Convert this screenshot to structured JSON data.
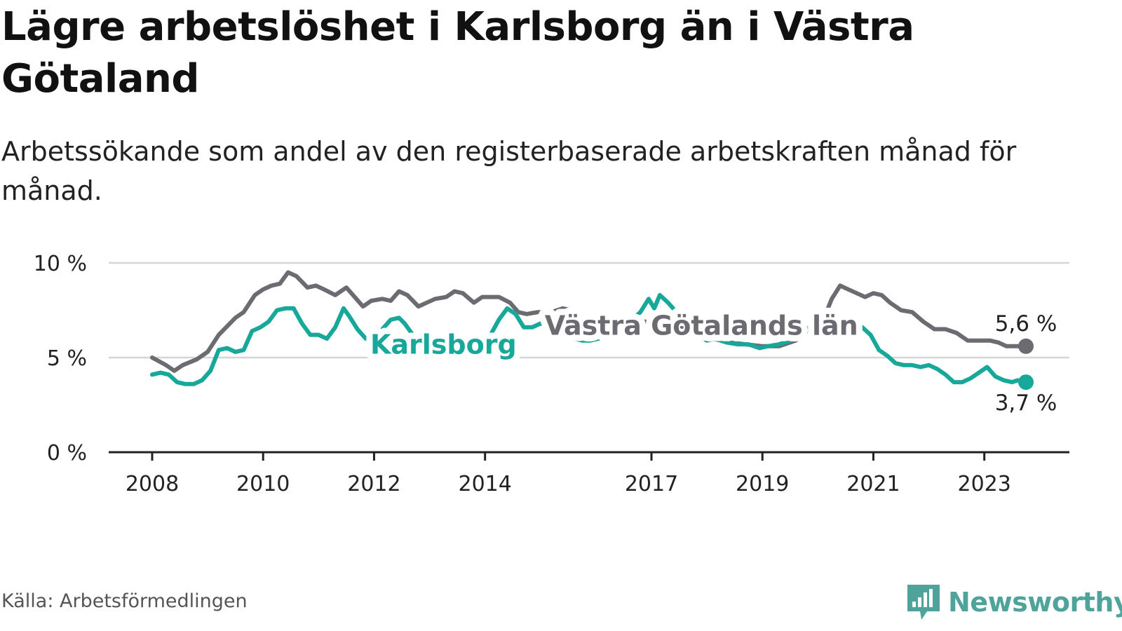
{
  "title": "Lägre arbetslöshet i Karlsborg än i Västra Götaland",
  "subtitle": "Arbetssökande som andel av den registerbaserade arbetskraften månad för månad.",
  "source": "Källa: Arbetsförmedlingen",
  "logo_text": "Newsworthy",
  "colors": {
    "karlsborg": "#17a89a",
    "vastra_gotaland": "#6d6b72",
    "grid": "#d6d6d6",
    "axis": "#222222",
    "logo": "#4fa39b"
  },
  "chart_data": {
    "type": "line",
    "title": "Lägre arbetslöshet i Karlsborg än i Västra Götaland",
    "xlabel": "",
    "ylabel": "",
    "xlim": [
      2008.0,
      2023.75
    ],
    "ylim": [
      0,
      10
    ],
    "yticks": [
      {
        "value": 0,
        "label": "0 %"
      },
      {
        "value": 5,
        "label": "5 %"
      },
      {
        "value": 10,
        "label": "10 %"
      }
    ],
    "xticks": [
      {
        "value": 2008,
        "label": "2008"
      },
      {
        "value": 2010,
        "label": "2010"
      },
      {
        "value": 2012,
        "label": "2012"
      },
      {
        "value": 2014,
        "label": "2014"
      },
      {
        "value": 2017,
        "label": "2017"
      },
      {
        "value": 2019,
        "label": "2019"
      },
      {
        "value": 2021,
        "label": "2021"
      },
      {
        "value": 2023,
        "label": "2023"
      }
    ],
    "grid": true,
    "series": [
      {
        "name": "Västra Götalands län",
        "end_label": "5,6 %",
        "points": [
          [
            2008.0,
            5.0
          ],
          [
            2008.25,
            4.6
          ],
          [
            2008.4,
            4.3
          ],
          [
            2008.55,
            4.6
          ],
          [
            2008.8,
            4.9
          ],
          [
            2009.0,
            5.3
          ],
          [
            2009.2,
            6.2
          ],
          [
            2009.5,
            7.1
          ],
          [
            2009.65,
            7.4
          ],
          [
            2009.85,
            8.3
          ],
          [
            2010.0,
            8.6
          ],
          [
            2010.15,
            8.8
          ],
          [
            2010.3,
            8.9
          ],
          [
            2010.45,
            9.5
          ],
          [
            2010.6,
            9.3
          ],
          [
            2010.8,
            8.7
          ],
          [
            2010.95,
            8.8
          ],
          [
            2011.1,
            8.6
          ],
          [
            2011.3,
            8.3
          ],
          [
            2011.5,
            8.7
          ],
          [
            2011.65,
            8.2
          ],
          [
            2011.8,
            7.7
          ],
          [
            2011.95,
            8.0
          ],
          [
            2012.15,
            8.1
          ],
          [
            2012.3,
            8.0
          ],
          [
            2012.45,
            8.5
          ],
          [
            2012.6,
            8.3
          ],
          [
            2012.8,
            7.7
          ],
          [
            2012.95,
            7.9
          ],
          [
            2013.1,
            8.1
          ],
          [
            2013.3,
            8.2
          ],
          [
            2013.45,
            8.5
          ],
          [
            2013.6,
            8.4
          ],
          [
            2013.8,
            7.9
          ],
          [
            2013.95,
            8.2
          ],
          [
            2014.1,
            8.2
          ],
          [
            2014.25,
            8.2
          ],
          [
            2014.45,
            7.9
          ],
          [
            2014.6,
            7.4
          ],
          [
            2014.75,
            7.3
          ],
          [
            2014.95,
            7.4
          ],
          [
            2015.2,
            7.4
          ],
          [
            2015.4,
            7.6
          ],
          [
            2015.55,
            7.5
          ],
          [
            2015.75,
            7.1
          ],
          [
            2015.95,
            7.0
          ],
          [
            2016.1,
            7.1
          ],
          [
            2016.3,
            7.2
          ],
          [
            2016.5,
            7.1
          ],
          [
            2016.7,
            6.9
          ],
          [
            2016.9,
            6.9
          ],
          [
            2017.2,
            6.9
          ],
          [
            2017.5,
            6.7
          ],
          [
            2017.8,
            6.3
          ],
          [
            2018.1,
            6.0
          ],
          [
            2018.4,
            5.8
          ],
          [
            2018.7,
            5.7
          ],
          [
            2019.0,
            5.6
          ],
          [
            2019.3,
            5.6
          ],
          [
            2019.6,
            5.9
          ],
          [
            2019.85,
            6.5
          ],
          [
            2020.1,
            7.0
          ],
          [
            2020.25,
            8.1
          ],
          [
            2020.4,
            8.8
          ],
          [
            2020.55,
            8.6
          ],
          [
            2020.7,
            8.4
          ],
          [
            2020.85,
            8.2
          ],
          [
            2021.0,
            8.4
          ],
          [
            2021.15,
            8.3
          ],
          [
            2021.3,
            7.9
          ],
          [
            2021.5,
            7.5
          ],
          [
            2021.7,
            7.4
          ],
          [
            2021.9,
            6.9
          ],
          [
            2022.1,
            6.5
          ],
          [
            2022.3,
            6.5
          ],
          [
            2022.5,
            6.3
          ],
          [
            2022.7,
            5.9
          ],
          [
            2022.9,
            5.9
          ],
          [
            2023.1,
            5.9
          ],
          [
            2023.25,
            5.8
          ],
          [
            2023.4,
            5.6
          ],
          [
            2023.55,
            5.6
          ],
          [
            2023.75,
            5.6
          ]
        ]
      },
      {
        "name": "Karlsborg",
        "end_label": "3,7 %",
        "points": [
          [
            2008.0,
            4.1
          ],
          [
            2008.15,
            4.2
          ],
          [
            2008.3,
            4.1
          ],
          [
            2008.45,
            3.7
          ],
          [
            2008.6,
            3.6
          ],
          [
            2008.75,
            3.6
          ],
          [
            2008.9,
            3.8
          ],
          [
            2009.05,
            4.3
          ],
          [
            2009.2,
            5.4
          ],
          [
            2009.35,
            5.5
          ],
          [
            2009.5,
            5.3
          ],
          [
            2009.65,
            5.4
          ],
          [
            2009.8,
            6.4
          ],
          [
            2009.95,
            6.6
          ],
          [
            2010.1,
            6.9
          ],
          [
            2010.25,
            7.5
          ],
          [
            2010.4,
            7.6
          ],
          [
            2010.55,
            7.6
          ],
          [
            2010.7,
            6.8
          ],
          [
            2010.85,
            6.2
          ],
          [
            2011.0,
            6.2
          ],
          [
            2011.15,
            6.0
          ],
          [
            2011.3,
            6.6
          ],
          [
            2011.45,
            7.6
          ],
          [
            2011.55,
            7.2
          ],
          [
            2011.7,
            6.5
          ],
          [
            2011.85,
            6.0
          ],
          [
            2012.0,
            6.0
          ],
          [
            2012.15,
            6.5
          ],
          [
            2012.3,
            7.0
          ],
          [
            2012.45,
            7.1
          ],
          [
            2012.55,
            6.8
          ],
          [
            2012.7,
            6.2
          ],
          [
            2012.85,
            5.8
          ],
          [
            2013.0,
            6.1
          ],
          [
            2013.15,
            5.9
          ],
          [
            2013.3,
            6.2
          ],
          [
            2013.45,
            6.2
          ],
          [
            2013.6,
            5.9
          ],
          [
            2013.8,
            5.8
          ],
          [
            2013.95,
            5.9
          ],
          [
            2014.1,
            6.2
          ],
          [
            2014.25,
            7.0
          ],
          [
            2014.4,
            7.6
          ],
          [
            2014.55,
            7.3
          ],
          [
            2014.7,
            6.6
          ],
          [
            2014.85,
            6.6
          ],
          [
            2015.0,
            6.8
          ],
          [
            2015.15,
            6.7
          ],
          [
            2015.3,
            7.1
          ],
          [
            2015.45,
            6.7
          ],
          [
            2015.6,
            6.0
          ],
          [
            2015.75,
            5.9
          ],
          [
            2015.9,
            5.9
          ],
          [
            2016.05,
            6.0
          ],
          [
            2016.2,
            6.2
          ],
          [
            2016.35,
            6.6
          ],
          [
            2016.5,
            7.2
          ],
          [
            2016.65,
            7.0
          ],
          [
            2016.8,
            7.4
          ],
          [
            2016.95,
            8.1
          ],
          [
            2017.05,
            7.6
          ],
          [
            2017.15,
            8.3
          ],
          [
            2017.3,
            7.9
          ],
          [
            2017.45,
            7.4
          ],
          [
            2017.55,
            7.1
          ],
          [
            2017.7,
            6.6
          ],
          [
            2017.85,
            6.1
          ],
          [
            2018.0,
            5.9
          ],
          [
            2018.15,
            6.0
          ],
          [
            2018.35,
            5.8
          ],
          [
            2018.55,
            5.7
          ],
          [
            2018.75,
            5.7
          ],
          [
            2018.95,
            5.5
          ],
          [
            2019.1,
            5.6
          ],
          [
            2019.3,
            5.7
          ],
          [
            2019.5,
            5.9
          ],
          [
            2019.7,
            6.3
          ],
          [
            2019.85,
            6.6
          ],
          [
            2020.0,
            6.8
          ],
          [
            2020.15,
            7.0
          ],
          [
            2020.35,
            7.2
          ],
          [
            2020.5,
            7.1
          ],
          [
            2020.65,
            6.9
          ],
          [
            2020.8,
            6.6
          ],
          [
            2020.95,
            6.2
          ],
          [
            2021.1,
            5.4
          ],
          [
            2021.25,
            5.1
          ],
          [
            2021.4,
            4.7
          ],
          [
            2021.55,
            4.6
          ],
          [
            2021.7,
            4.6
          ],
          [
            2021.85,
            4.5
          ],
          [
            2022.0,
            4.6
          ],
          [
            2022.15,
            4.4
          ],
          [
            2022.3,
            4.1
          ],
          [
            2022.45,
            3.7
          ],
          [
            2022.6,
            3.7
          ],
          [
            2022.75,
            3.9
          ],
          [
            2022.9,
            4.2
          ],
          [
            2023.05,
            4.5
          ],
          [
            2023.2,
            4.0
          ],
          [
            2023.35,
            3.8
          ],
          [
            2023.5,
            3.7
          ],
          [
            2023.6,
            3.8
          ],
          [
            2023.75,
            3.7
          ]
        ]
      }
    ],
    "annotations": [
      {
        "text": "Karlsborg",
        "series": "Karlsborg",
        "x": 2013.25,
        "y": 5.2
      },
      {
        "text": "Västra Götalands län",
        "series": "Västra Götalands län",
        "x": 2017.9,
        "y": 6.2
      }
    ]
  }
}
